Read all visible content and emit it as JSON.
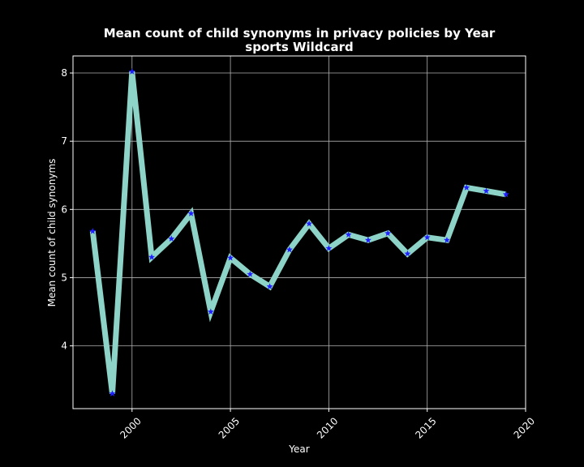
{
  "chart_data": {
    "type": "line",
    "title": "Mean count of child synonyms in privacy policies by Year",
    "subtitle": "sports Wildcard",
    "xlabel": "Year",
    "ylabel": "Mean count of child synonyms",
    "xlim": [
      1997,
      2020
    ],
    "ylim": [
      3.08,
      8.25
    ],
    "xticks": [
      2000,
      2005,
      2010,
      2015,
      2020
    ],
    "yticks": [
      4,
      5,
      6,
      7,
      8
    ],
    "grid": true,
    "background": "#000000",
    "line_color": "#8dd3c7",
    "marker_color": "#1f1fff",
    "marker": "star",
    "series": [
      {
        "x": [
          1998,
          1999,
          2000,
          2001,
          2002,
          2003,
          2004,
          2005,
          2006,
          2007,
          2008,
          2009,
          2010,
          2011,
          2012,
          2013,
          2014,
          2015,
          2016,
          2017,
          2018,
          2019
        ],
        "values": [
          5.68,
          3.3,
          8.02,
          5.3,
          5.57,
          5.94,
          4.5,
          5.29,
          5.05,
          4.87,
          5.41,
          5.79,
          5.43,
          5.63,
          5.55,
          5.65,
          5.35,
          5.59,
          5.55,
          6.32,
          6.27,
          6.22
        ]
      }
    ]
  }
}
